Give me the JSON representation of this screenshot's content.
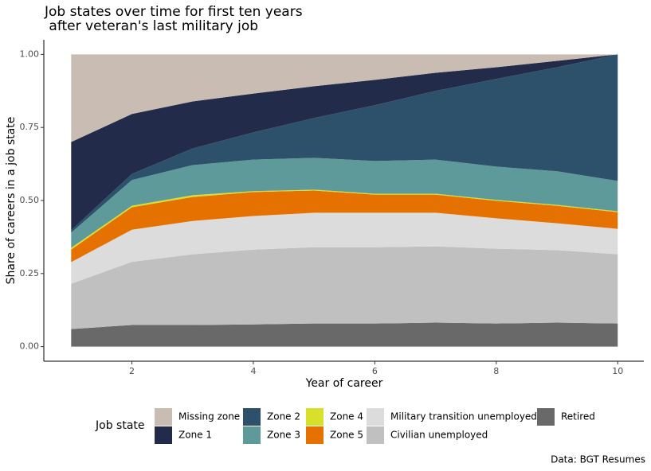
{
  "chart_data": {
    "type": "stacked-area",
    "title": [
      "Job states over time for first ten years",
      " after veteran's last military job"
    ],
    "x_label": "Year of career",
    "y_label": "Share of careers in a job state",
    "legend_title": "Job state",
    "caption": "Data: BGT Resumes",
    "x": [
      1,
      2,
      3,
      4,
      5,
      6,
      7,
      8,
      9,
      10
    ],
    "series": [
      {
        "name": "Missing zone",
        "color": "#c9bcb2",
        "values": [
          0.3,
          0.204,
          0.161,
          0.134,
          0.109,
          0.087,
          0.063,
          0.044,
          0.022,
          0
        ]
      },
      {
        "name": "Zone 1",
        "color": "#232b4a",
        "values": [
          0.302,
          0.205,
          0.161,
          0.133,
          0.109,
          0.087,
          0.062,
          0.04,
          0.022,
          0
        ]
      },
      {
        "name": "Zone 2",
        "color": "#2d516b",
        "values": [
          0.008,
          0.021,
          0.057,
          0.093,
          0.136,
          0.191,
          0.235,
          0.3,
          0.356,
          0.433
        ]
      },
      {
        "name": "Zone 3",
        "color": "#5f9a9a",
        "values": [
          0.052,
          0.088,
          0.103,
          0.108,
          0.109,
          0.112,
          0.117,
          0.114,
          0.115,
          0.104
        ]
      },
      {
        "name": "Zone 4",
        "color": "#d9e02a",
        "values": [
          0.006,
          0.005,
          0.006,
          0.003,
          0.003,
          0.003,
          0.003,
          0.003,
          0.003,
          0.003
        ]
      },
      {
        "name": "Zone 5",
        "color": "#e57200",
        "values": [
          0.043,
          0.077,
          0.082,
          0.082,
          0.076,
          0.062,
          0.062,
          0.06,
          0.06,
          0.057
        ]
      },
      {
        "name": "Military transition unemployed",
        "color": "#dcdcdc",
        "values": [
          0.074,
          0.11,
          0.114,
          0.115,
          0.118,
          0.118,
          0.115,
          0.104,
          0.092,
          0.087
        ]
      },
      {
        "name": "Civilian unemployed",
        "color": "#c0c0c0",
        "values": [
          0.155,
          0.216,
          0.242,
          0.256,
          0.261,
          0.261,
          0.261,
          0.256,
          0.248,
          0.237
        ]
      },
      {
        "name": "Retired",
        "color": "#696969",
        "values": [
          0.06,
          0.074,
          0.074,
          0.076,
          0.079,
          0.079,
          0.082,
          0.079,
          0.082,
          0.079
        ]
      }
    ],
    "xlim": [
      0.55,
      10.43
    ],
    "ylim": [
      -0.05,
      1.05
    ],
    "xticks": [
      2,
      4,
      6,
      8,
      10
    ],
    "yticks": [
      {
        "value": 0,
        "label": "0.00"
      },
      {
        "value": 0.25,
        "label": "0.25"
      },
      {
        "value": 0.5,
        "label": "0.50"
      },
      {
        "value": 0.75,
        "label": "0.75"
      },
      {
        "value": 1,
        "label": "1.00"
      }
    ],
    "grid": false
  }
}
